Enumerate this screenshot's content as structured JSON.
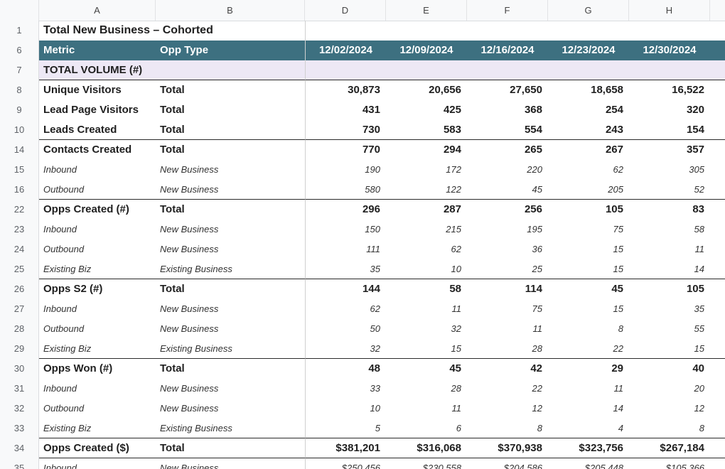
{
  "columns": {
    "letters": [
      "A",
      "B",
      "D",
      "E",
      "F",
      "G",
      "H"
    ]
  },
  "title": "Total New Business – Cohorted",
  "header": {
    "metric": "Metric",
    "opp_type": "Opp Type",
    "dates": [
      "12/02/2024",
      "12/09/2024",
      "12/16/2024",
      "12/23/2024",
      "12/30/2024"
    ]
  },
  "section": "TOTAL VOLUME (#)",
  "rows": [
    {
      "rn": "8",
      "metric": "Unique Visitors",
      "type": "Total",
      "values": [
        "30,873",
        "20,656",
        "27,650",
        "18,658",
        "16,522"
      ]
    },
    {
      "rn": "9",
      "metric": "Lead Page Visitors",
      "type": "Total",
      "values": [
        "431",
        "425",
        "368",
        "254",
        "320"
      ]
    },
    {
      "rn": "10",
      "metric": "Leads Created",
      "type": "Total",
      "values": [
        "730",
        "583",
        "554",
        "243",
        "154"
      ]
    },
    {
      "rn": "14",
      "metric": "Contacts Created",
      "type": "Total",
      "values": [
        "770",
        "294",
        "265",
        "267",
        "357"
      ]
    },
    {
      "rn": "15",
      "metric": "Inbound",
      "type": "New Business",
      "values": [
        "190",
        "172",
        "220",
        "62",
        "305"
      ]
    },
    {
      "rn": "16",
      "metric": "Outbound",
      "type": "New Business",
      "values": [
        "580",
        "122",
        "45",
        "205",
        "52"
      ]
    },
    {
      "rn": "22",
      "metric": "Opps Created (#)",
      "type": "Total",
      "values": [
        "296",
        "287",
        "256",
        "105",
        "83"
      ]
    },
    {
      "rn": "23",
      "metric": "Inbound",
      "type": "New Business",
      "values": [
        "150",
        "215",
        "195",
        "75",
        "58"
      ]
    },
    {
      "rn": "24",
      "metric": "Outbound",
      "type": "New Business",
      "values": [
        "111",
        "62",
        "36",
        "15",
        "11"
      ]
    },
    {
      "rn": "25",
      "metric": "Existing Biz",
      "type": "Existing Business",
      "values": [
        "35",
        "10",
        "25",
        "15",
        "14"
      ]
    },
    {
      "rn": "26",
      "metric": "Opps S2 (#)",
      "type": "Total",
      "values": [
        "144",
        "58",
        "114",
        "45",
        "105"
      ]
    },
    {
      "rn": "27",
      "metric": "Inbound",
      "type": "New Business",
      "values": [
        "62",
        "11",
        "75",
        "15",
        "35"
      ]
    },
    {
      "rn": "28",
      "metric": "Outbound",
      "type": "New Business",
      "values": [
        "50",
        "32",
        "11",
        "8",
        "55"
      ]
    },
    {
      "rn": "29",
      "metric": "Existing Biz",
      "type": "Existing Business",
      "values": [
        "32",
        "15",
        "28",
        "22",
        "15"
      ]
    },
    {
      "rn": "30",
      "metric": "Opps Won (#)",
      "type": "Total",
      "values": [
        "48",
        "45",
        "42",
        "29",
        "40"
      ]
    },
    {
      "rn": "31",
      "metric": "Inbound",
      "type": "New Business",
      "values": [
        "33",
        "28",
        "22",
        "11",
        "20"
      ]
    },
    {
      "rn": "32",
      "metric": "Outbound",
      "type": "New Business",
      "values": [
        "10",
        "11",
        "12",
        "14",
        "12"
      ]
    },
    {
      "rn": "33",
      "metric": "Existing Biz",
      "type": "Existing Business",
      "values": [
        "5",
        "6",
        "8",
        "4",
        "8"
      ]
    },
    {
      "rn": "34",
      "metric": "Opps Created ($)",
      "type": "Total",
      "values": [
        "$381,201",
        "$316,068",
        "$370,938",
        "$323,756",
        "$267,184"
      ]
    },
    {
      "rn": "35",
      "metric": "Inbound",
      "type": "New Business",
      "values": [
        "$250,456",
        "$230,558",
        "$204,586",
        "$205,448",
        "$105,366"
      ]
    }
  ]
}
